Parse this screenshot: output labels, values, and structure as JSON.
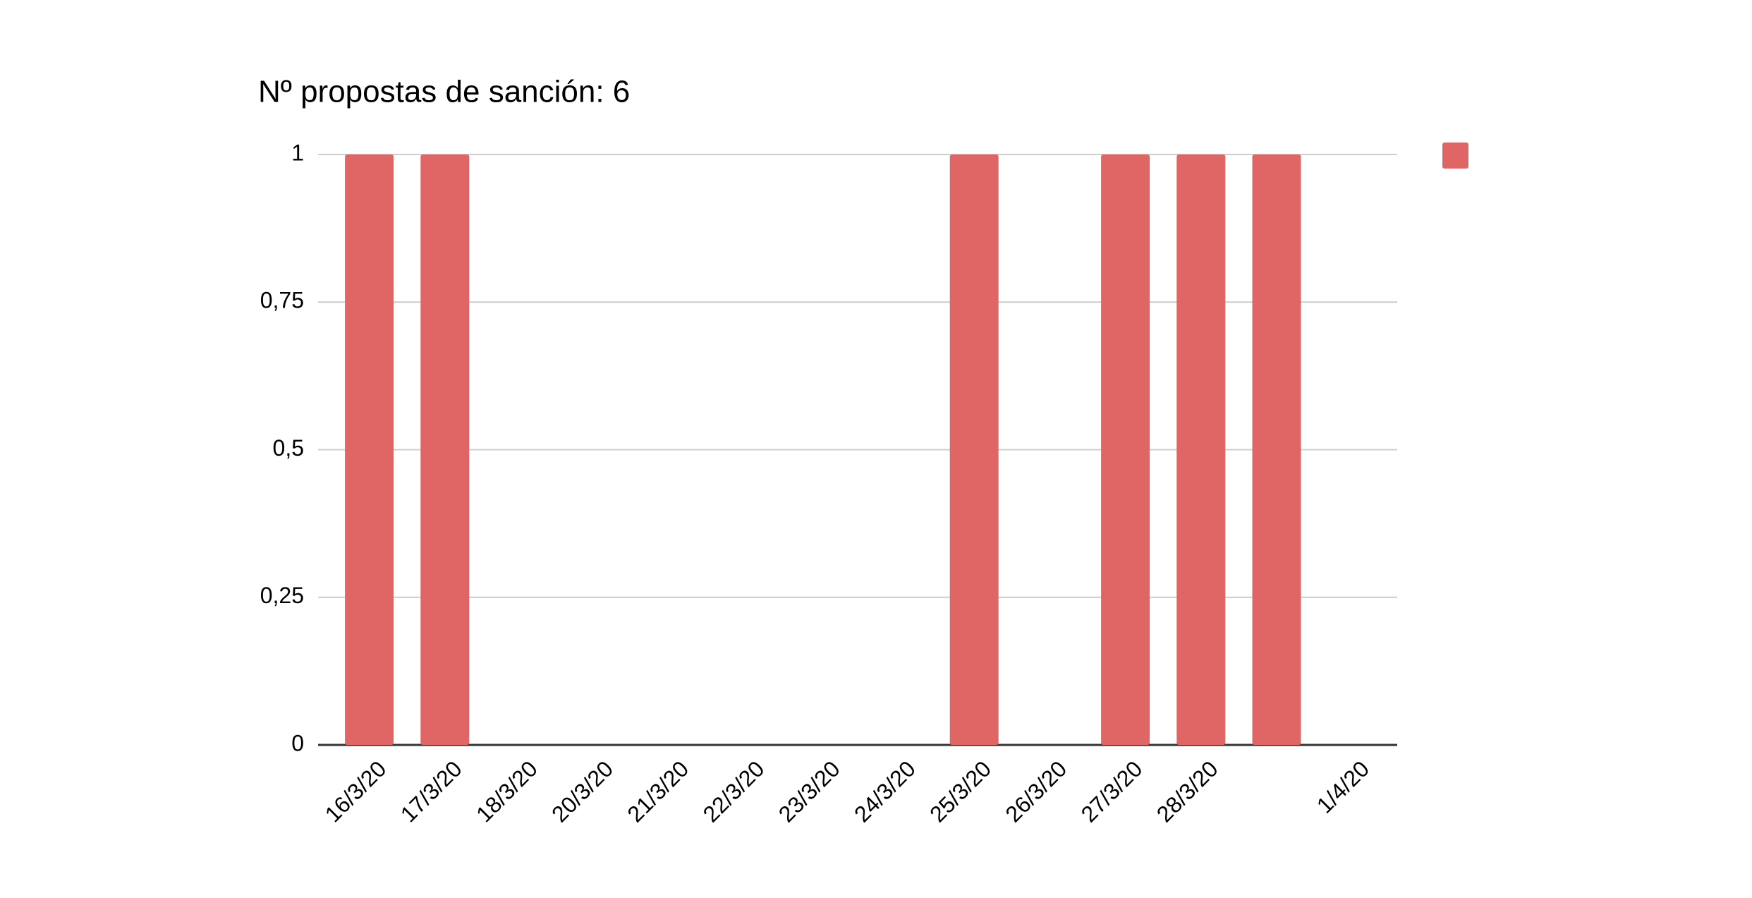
{
  "chart_data": {
    "type": "bar",
    "title": "Nº propostas de sanción: 6",
    "categories": [
      "16/3/20",
      "17/3/20",
      "18/3/20",
      "20/3/20",
      "21/3/20",
      "22/3/20",
      "23/3/20",
      "24/3/20",
      "25/3/20",
      "26/3/20",
      "27/3/20",
      "28/3/20",
      null,
      "1/4/20"
    ],
    "values": [
      1,
      1,
      0,
      0,
      0,
      0,
      0,
      0,
      1,
      0,
      1,
      1,
      1,
      0
    ],
    "color": "#e06666",
    "ylim": [
      0,
      1
    ],
    "yticks": [
      0,
      {
        "value": 0.25,
        "label": "0,25"
      },
      {
        "value": 0.5,
        "label": "0,5"
      },
      {
        "value": 0.75,
        "label": "0,75"
      },
      1
    ],
    "grid": true
  }
}
